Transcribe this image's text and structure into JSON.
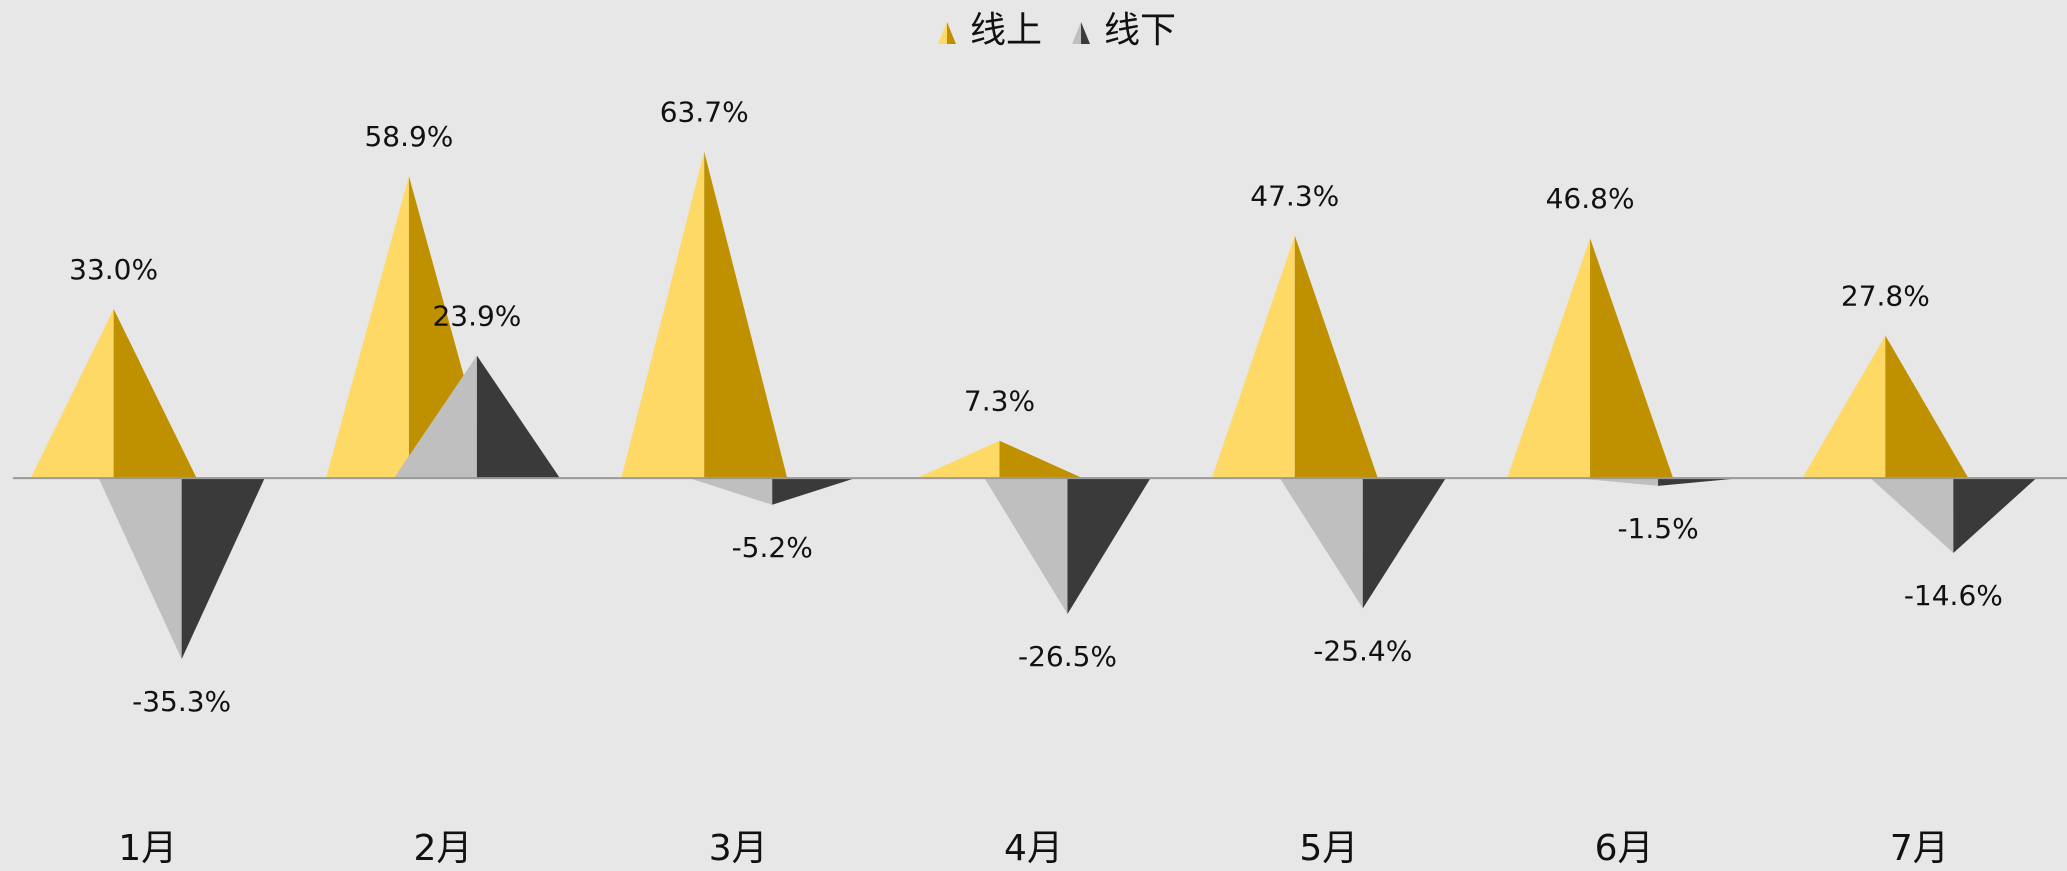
{
  "chart_data": {
    "type": "pyramid",
    "categories": [
      "1月",
      "2月",
      "3月",
      "4月",
      "5月",
      "6月",
      "7月"
    ],
    "series": [
      {
        "name": "线上",
        "colors": [
          "#FFD966",
          "#BF9000"
        ],
        "values": [
          33.0,
          58.9,
          63.7,
          7.3,
          47.3,
          46.8,
          27.8
        ],
        "value_labels": [
          "33.0%",
          "58.9%",
          "63.7%",
          "7.3%",
          "47.3%",
          "46.8%",
          "27.8%"
        ]
      },
      {
        "name": "线下",
        "colors": [
          "#BFBFBF",
          "#3A3A3A"
        ],
        "values": [
          -35.3,
          23.9,
          -5.2,
          -26.5,
          -25.4,
          -1.5,
          -14.6
        ],
        "value_labels": [
          "-35.3%",
          "23.9%",
          "-5.2%",
          "-26.5%",
          "-25.4%",
          "-1.5%",
          "-14.6%"
        ]
      }
    ],
    "ylim": [
      -70,
      80
    ],
    "legend": "top"
  }
}
